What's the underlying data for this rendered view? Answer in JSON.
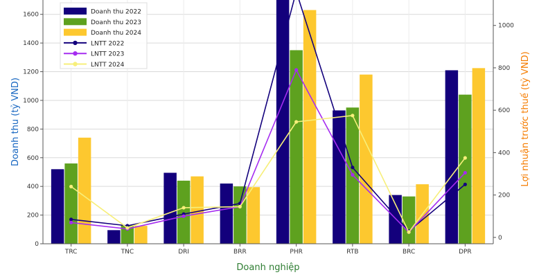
{
  "chart_data": {
    "type": "bar",
    "xlabel": "Doanh nghiệp",
    "ylabel": "Doanh thu (tỷ VND)",
    "y2label": "Lợi nhuận trước thuế (tỷ VND)",
    "categories": [
      "TRC",
      "TNC",
      "DRI",
      "BRR",
      "PHR",
      "RTB",
      "BRC",
      "DPR"
    ],
    "ylim": [
      0,
      1700
    ],
    "y2lim": [
      -30,
      1120
    ],
    "yticks": [
      0,
      200,
      400,
      600,
      800,
      1000,
      1200,
      1400,
      1600
    ],
    "y2ticks": [
      0,
      200,
      400,
      600,
      800,
      1000
    ],
    "grid": true,
    "legend_position": "top-left",
    "bar_series": [
      {
        "name": "Doanh thu 2022",
        "color": "#13007c",
        "values": [
          520,
          95,
          495,
          420,
          1700,
          930,
          340,
          1210
        ]
      },
      {
        "name": "Doanh thu 2023",
        "color": "#5ea11f",
        "values": [
          560,
          130,
          440,
          400,
          1350,
          950,
          330,
          1040
        ]
      },
      {
        "name": "Doanh thu 2024",
        "color": "#fdc82f",
        "values": [
          740,
          125,
          470,
          395,
          1630,
          1180,
          415,
          1225
        ]
      }
    ],
    "line_series": [
      {
        "name": "LNTT 2022",
        "color": "#13007c",
        "values": [
          85,
          55,
          110,
          160,
          1160,
          330,
          30,
          250
        ]
      },
      {
        "name": "LNTT 2023",
        "color": "#a52cf0",
        "values": [
          70,
          40,
          100,
          145,
          790,
          295,
          25,
          305
        ]
      },
      {
        "name": "LNTT 2024",
        "color": "#f7ef7a",
        "values": [
          240,
          45,
          140,
          145,
          545,
          575,
          25,
          375
        ]
      }
    ],
    "colors": {
      "ylabel": "#1565c0",
      "y2label": "#f57c00",
      "xlabel": "#2e7d32",
      "grid": "#d9d9d9"
    }
  }
}
